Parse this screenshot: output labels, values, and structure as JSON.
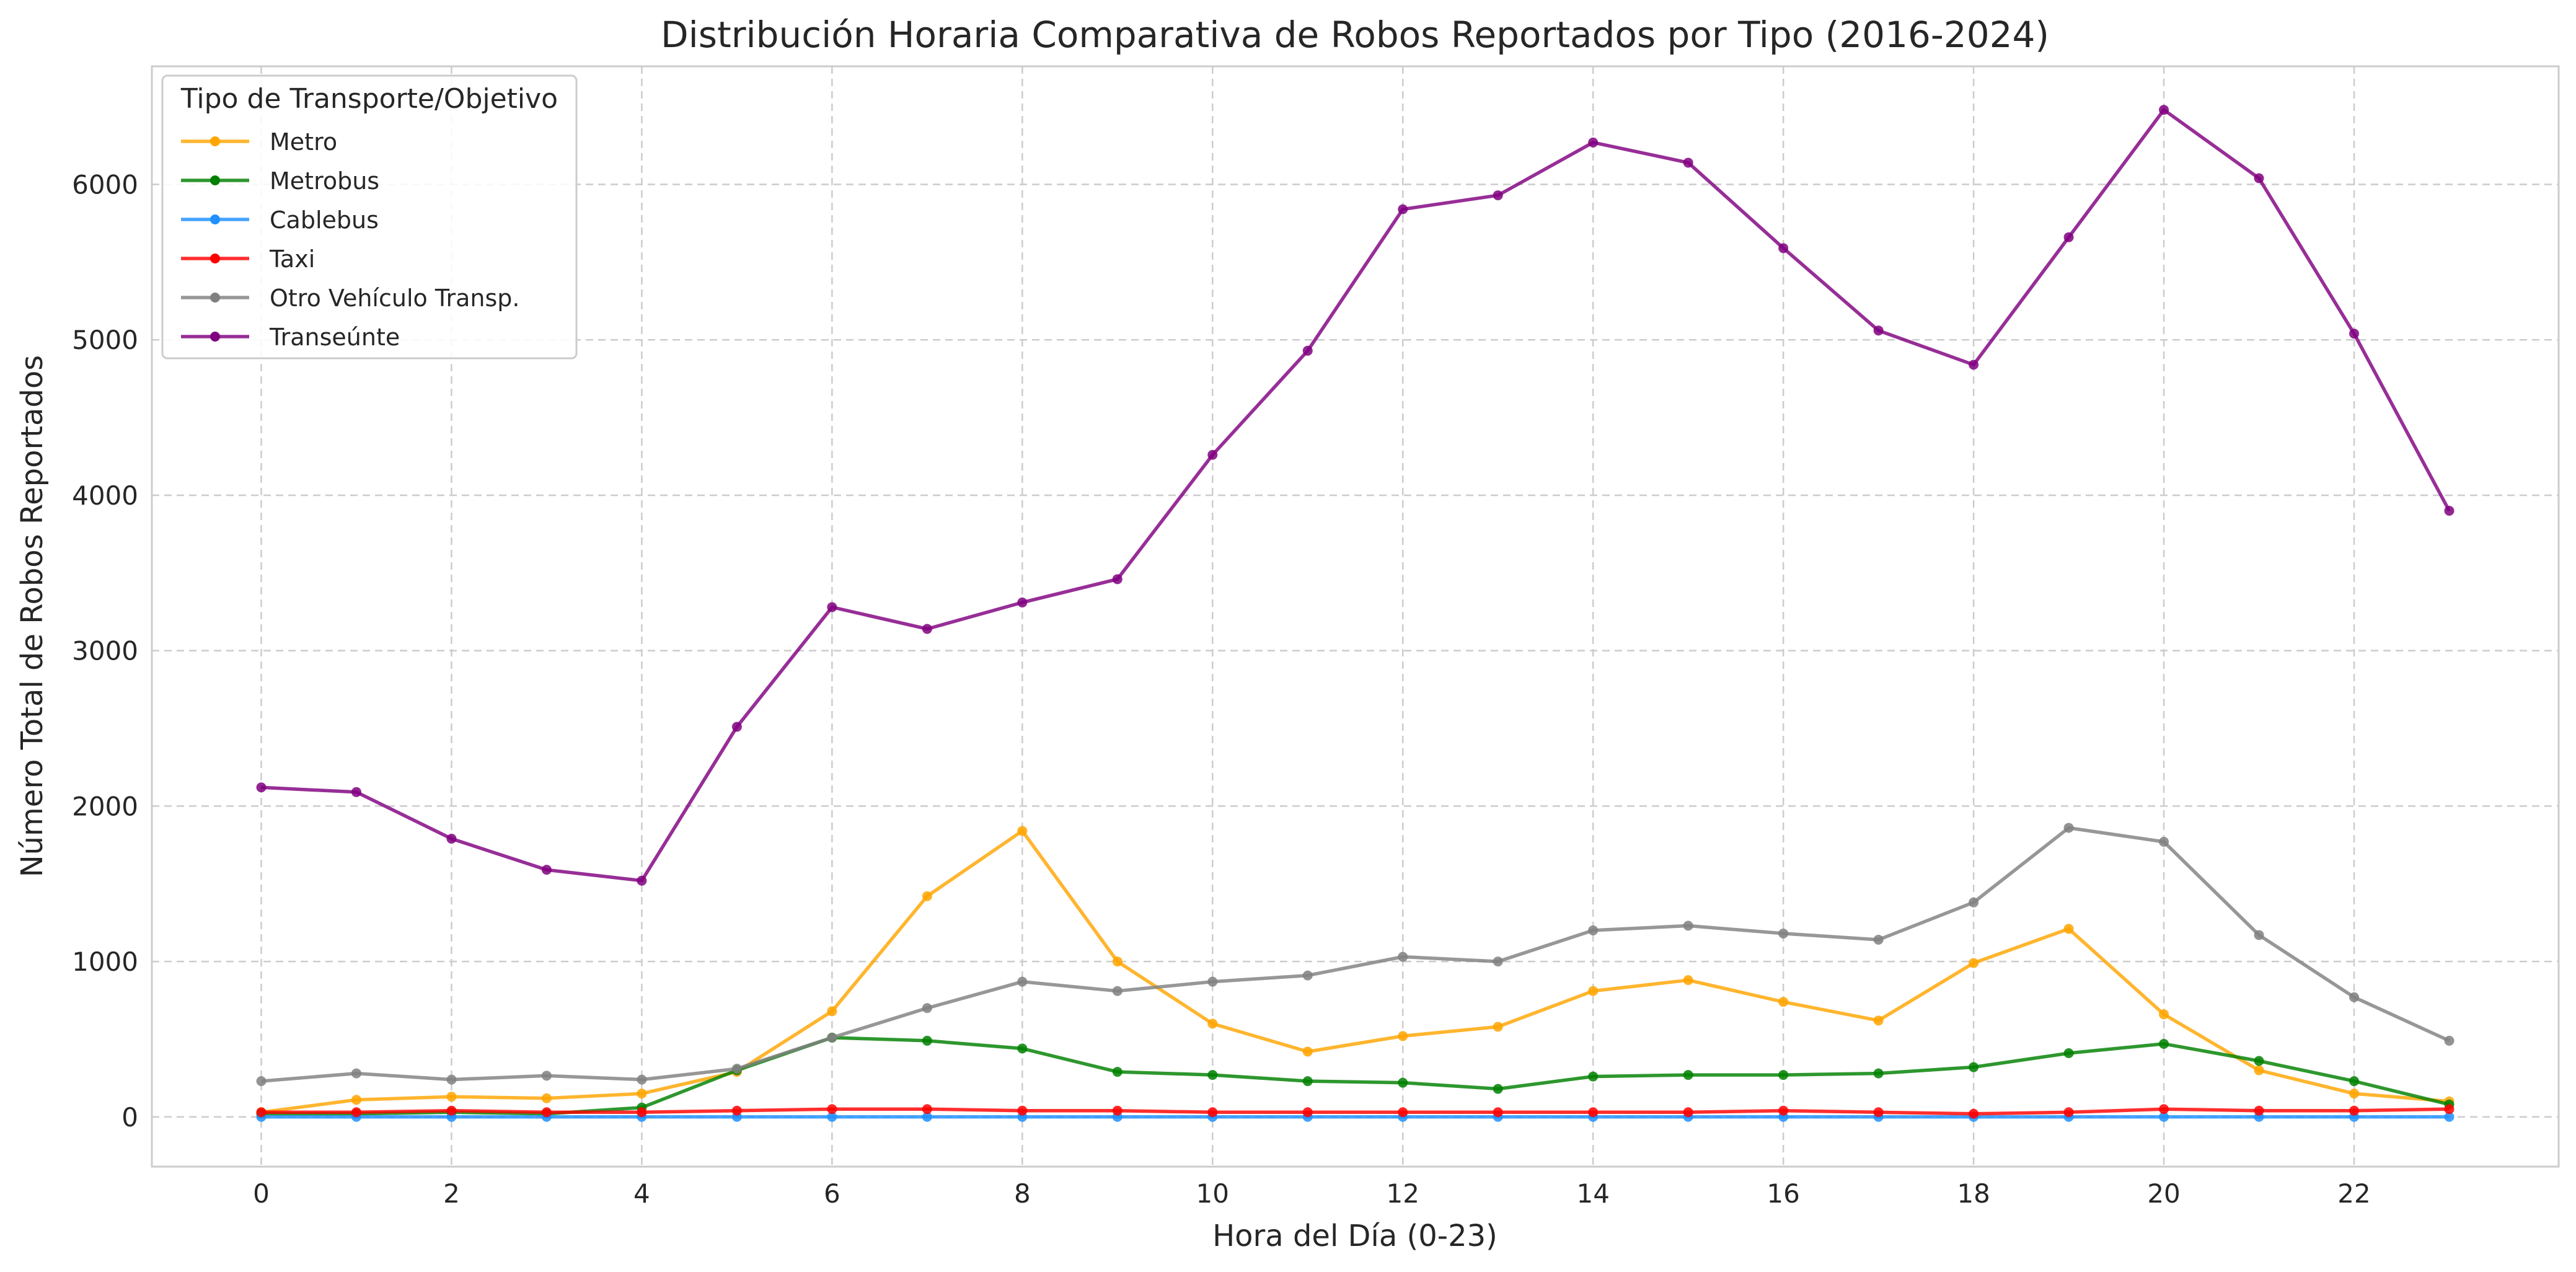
{
  "chart_data": {
    "type": "line",
    "title": "Distribución Horaria Comparativa de Robos Reportados por Tipo (2016-2024)",
    "xlabel": "Hora del Día (0-23)",
    "ylabel": "Número Total de Robos Reportados",
    "x": [
      0,
      1,
      2,
      3,
      4,
      5,
      6,
      7,
      8,
      9,
      10,
      11,
      12,
      13,
      14,
      15,
      16,
      17,
      18,
      19,
      20,
      21,
      22,
      23
    ],
    "x_ticks": [
      0,
      2,
      4,
      6,
      8,
      10,
      12,
      14,
      16,
      18,
      20,
      22
    ],
    "y_ticks": [
      0,
      1000,
      2000,
      3000,
      4000,
      5000,
      6000
    ],
    "xlim": [
      -1.15,
      24.15
    ],
    "ylim": [
      -320,
      6760
    ],
    "grid": true,
    "legend": {
      "title": "Tipo de Transporte/Objetivo",
      "placement": "top-left"
    },
    "series": [
      {
        "name": "Metro",
        "color": "#FFA500",
        "values": [
          30,
          110,
          130,
          120,
          150,
          290,
          680,
          1420,
          1840,
          1000,
          600,
          420,
          520,
          580,
          810,
          880,
          740,
          620,
          990,
          1210,
          660,
          300,
          150,
          100
        ]
      },
      {
        "name": "Metrobus",
        "color": "#008000",
        "values": [
          20,
          20,
          30,
          20,
          60,
          300,
          510,
          490,
          440,
          290,
          270,
          230,
          220,
          180,
          260,
          270,
          270,
          280,
          320,
          410,
          470,
          360,
          230,
          80
        ]
      },
      {
        "name": "Cablebus",
        "color": "#1E90FF",
        "values": [
          0,
          0,
          0,
          0,
          0,
          0,
          0,
          0,
          0,
          0,
          0,
          0,
          0,
          0,
          0,
          0,
          0,
          0,
          0,
          0,
          0,
          0,
          0,
          0
        ]
      },
      {
        "name": "Taxi",
        "color": "#FF0000",
        "values": [
          30,
          30,
          40,
          30,
          30,
          40,
          50,
          50,
          40,
          40,
          30,
          30,
          30,
          30,
          30,
          30,
          40,
          30,
          20,
          30,
          50,
          40,
          40,
          50
        ]
      },
      {
        "name": "Otro Vehículo Transp.",
        "color": "#808080",
        "values": [
          230,
          280,
          240,
          265,
          240,
          310,
          510,
          700,
          870,
          810,
          870,
          910,
          1030,
          1000,
          1200,
          1230,
          1180,
          1140,
          1380,
          1860,
          1770,
          1170,
          770,
          490
        ]
      },
      {
        "name": "Transeúnte",
        "color": "#800080",
        "values": [
          2120,
          2090,
          1790,
          1590,
          1520,
          2510,
          3280,
          3140,
          3310,
          3460,
          4260,
          4930,
          5840,
          5930,
          6270,
          6140,
          5590,
          5060,
          4840,
          5660,
          6480,
          6040,
          5040,
          3900
        ]
      }
    ]
  }
}
